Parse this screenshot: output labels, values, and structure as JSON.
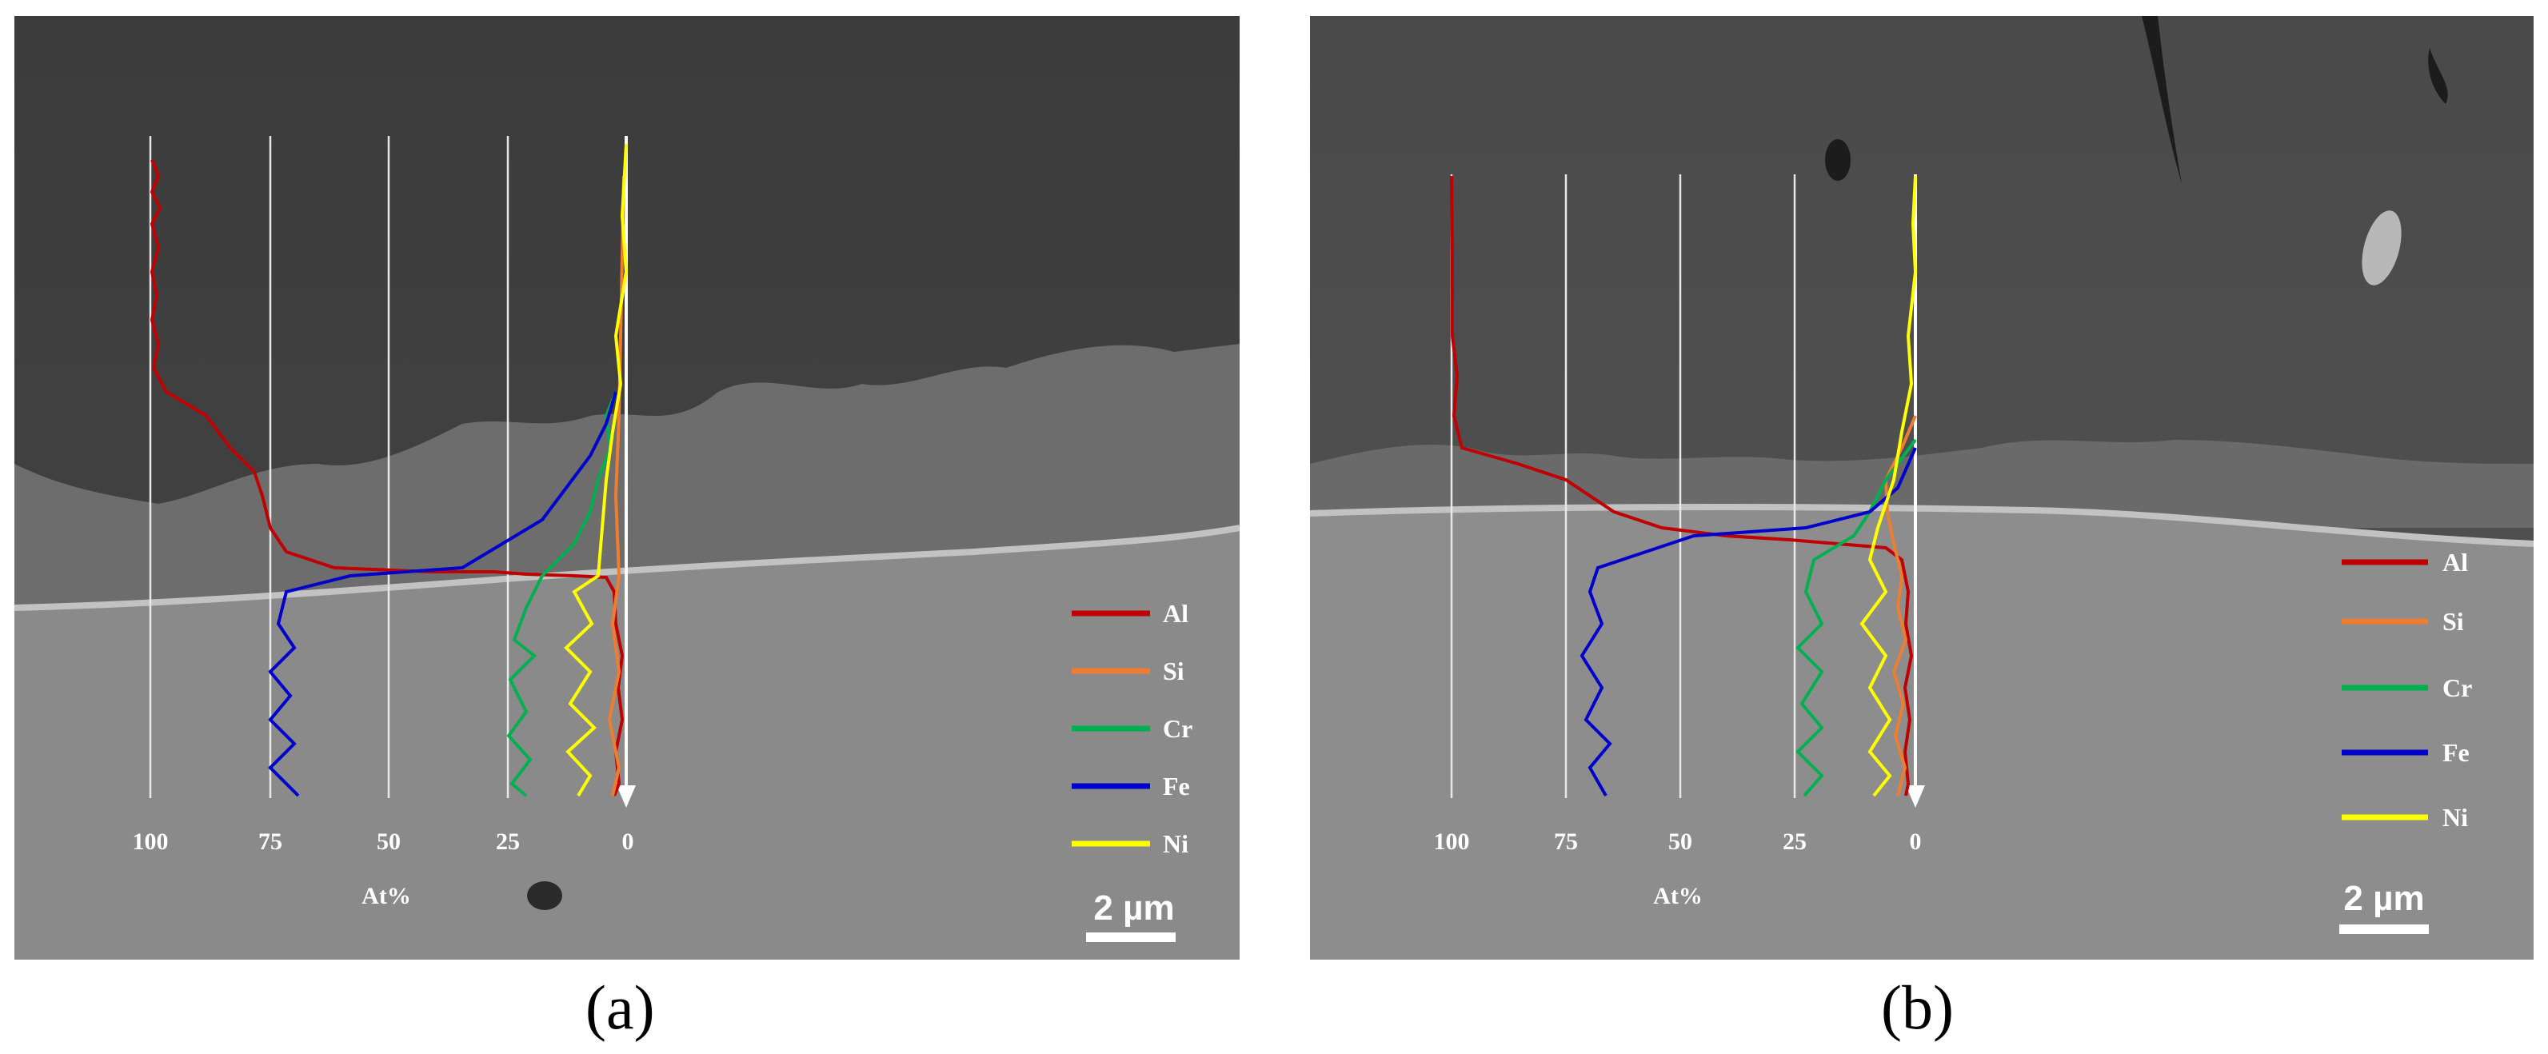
{
  "figure": {
    "panels": [
      {
        "id": "a",
        "caption": "(a)",
        "axis": {
          "label": "At%",
          "ticks": [
            "100",
            "75",
            "50",
            "25",
            "0"
          ]
        },
        "legend": [
          {
            "name": "Al",
            "color": "#c00000"
          },
          {
            "name": "Si",
            "color": "#ed7d31"
          },
          {
            "name": "Cr",
            "color": "#00b050"
          },
          {
            "name": "Fe",
            "color": "#0000cc"
          },
          {
            "name": "Ni",
            "color": "#ffff00"
          }
        ],
        "scale_bar": "2 µm"
      },
      {
        "id": "b",
        "caption": "(b)",
        "axis": {
          "label": "At%",
          "ticks": [
            "100",
            "75",
            "50",
            "25",
            "0"
          ]
        },
        "legend": [
          {
            "name": "Al",
            "color": "#c00000"
          },
          {
            "name": "Si",
            "color": "#ed7d31"
          },
          {
            "name": "Cr",
            "color": "#00b050"
          },
          {
            "name": "Fe",
            "color": "#0000cc"
          },
          {
            "name": "Ni",
            "color": "#ffff00"
          }
        ],
        "scale_bar": "2 µm"
      }
    ]
  }
}
